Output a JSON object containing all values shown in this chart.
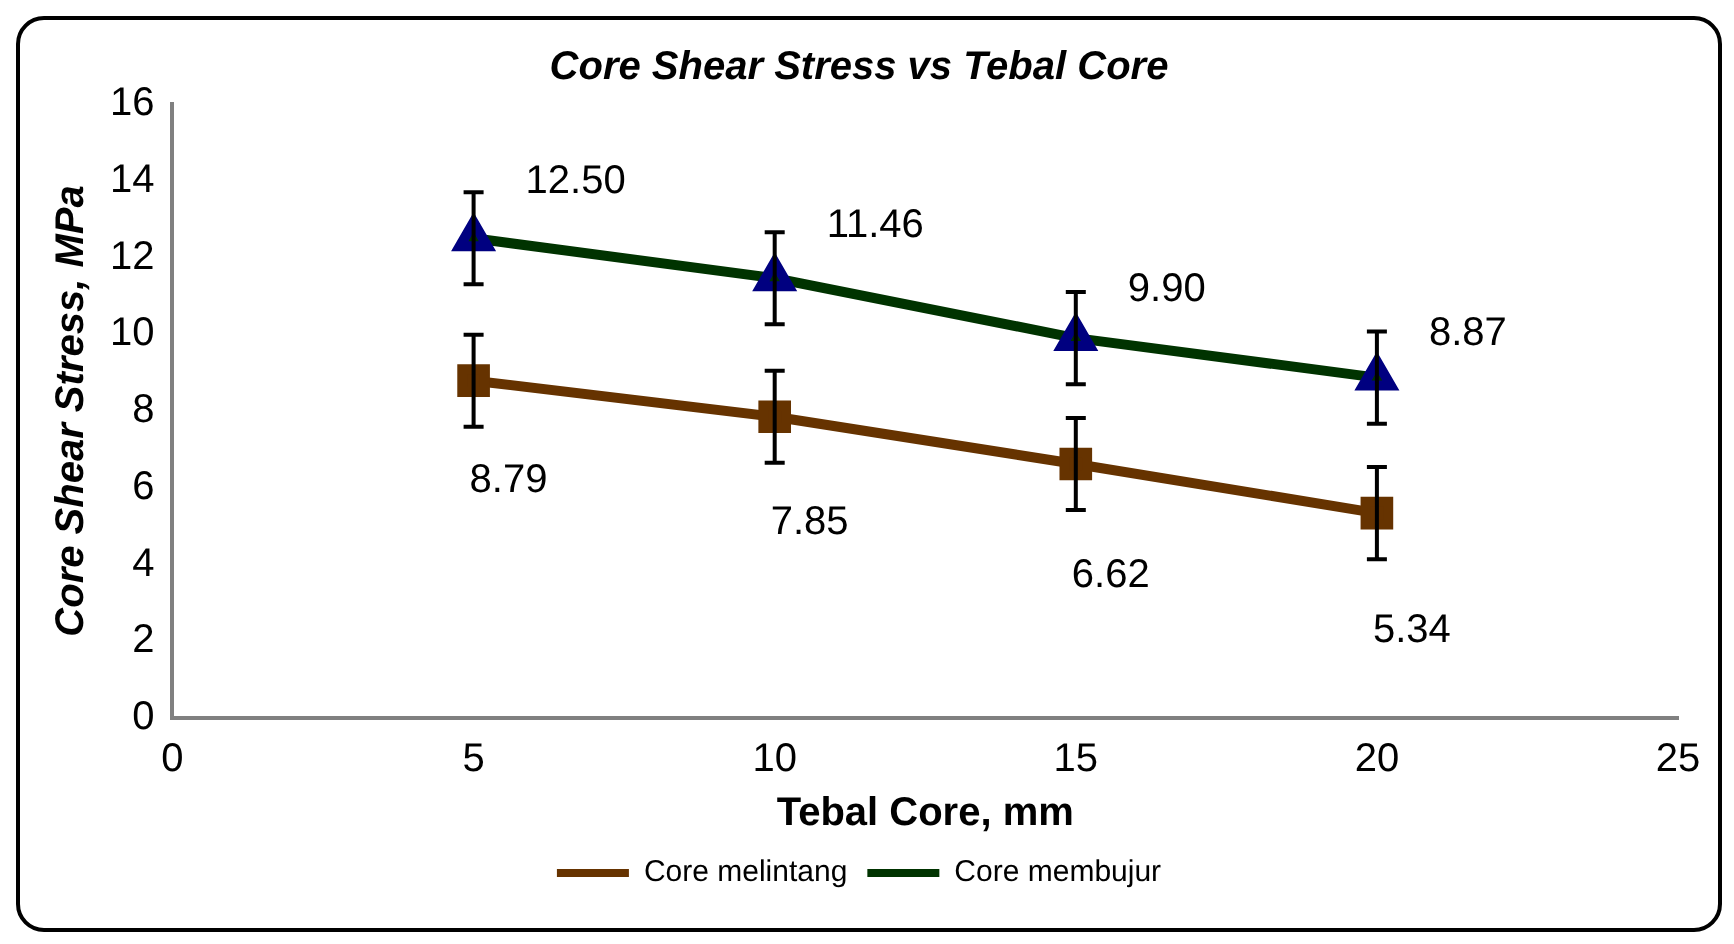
{
  "chart_data": {
    "type": "line",
    "title": "Core Shear Stress vs Tebal Core",
    "xlabel": "Tebal Core, mm",
    "ylabel": "Core Shear Stress, MPa",
    "x": [
      5,
      10,
      15,
      20
    ],
    "series": [
      {
        "name": "Core melintang",
        "color": "#663300",
        "marker": "square",
        "values": [
          8.79,
          7.85,
          6.62,
          5.34
        ],
        "value_labels": [
          "8.79",
          "7.85",
          "6.62",
          "5.34"
        ],
        "errors": [
          1.2,
          1.2,
          1.2,
          1.2
        ]
      },
      {
        "name": "Core membujur",
        "color": "#003300",
        "marker": "triangle",
        "values": [
          12.5,
          11.46,
          9.9,
          8.87
        ],
        "value_labels": [
          "12.50",
          "11.46",
          "9.90",
          "8.87"
        ],
        "errors": [
          1.2,
          1.2,
          1.2,
          1.2
        ]
      }
    ],
    "xlim": [
      0,
      25
    ],
    "xticks": [
      0,
      5,
      10,
      15,
      20,
      25
    ],
    "ylim": [
      0,
      16
    ],
    "yticks": [
      0,
      2,
      4,
      6,
      8,
      10,
      12,
      14,
      16
    ],
    "grid": false,
    "legend": "bottom",
    "line_style": "solid"
  }
}
